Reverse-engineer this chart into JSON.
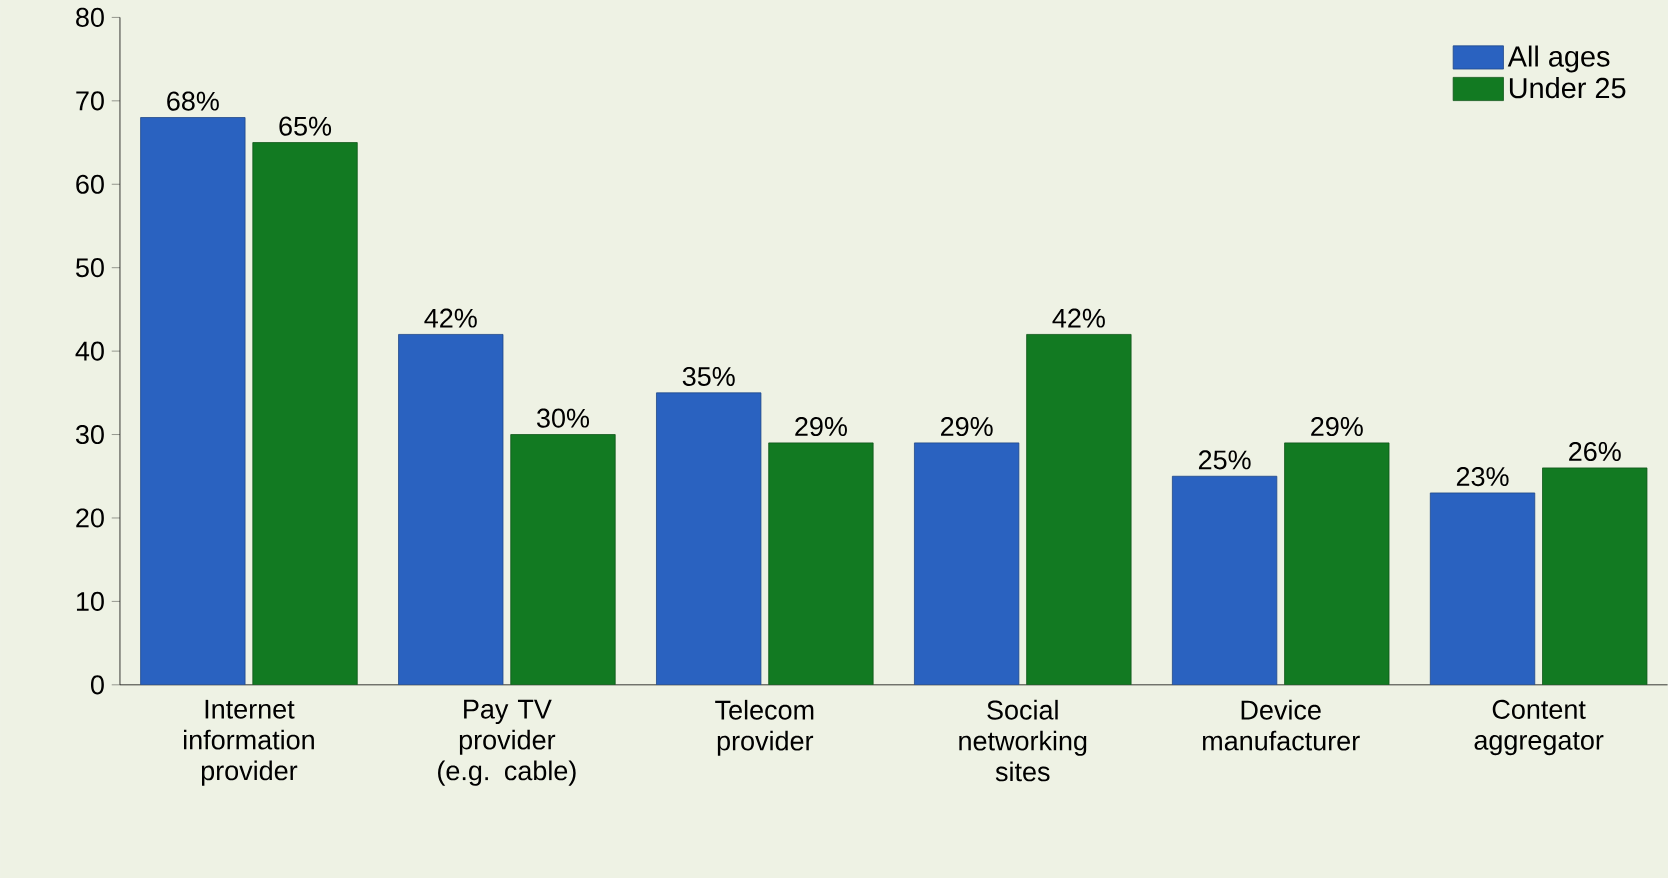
{
  "chart_data": {
    "type": "bar",
    "categories": [
      "Internet information provider",
      "Pay TV provider (e.g. cable)",
      "Telecom provider",
      "Social networking sites",
      "Device manufacturer",
      "Content aggregator"
    ],
    "series": [
      {
        "name": "All ages",
        "color": "#2a62c0",
        "values": [
          68,
          42,
          35,
          29,
          25,
          23
        ],
        "value_labels": [
          "68%",
          "42%",
          "35%",
          "29%",
          "25%",
          "23%"
        ]
      },
      {
        "name": "Under 25",
        "color": "#127a22",
        "values": [
          65,
          30,
          29,
          42,
          29,
          26
        ],
        "value_labels": [
          "65%",
          "30%",
          "29%",
          "42%",
          "29%",
          "26%"
        ]
      }
    ],
    "ylim": [
      0,
      80
    ],
    "yticks": [
      0,
      10,
      20,
      30,
      40,
      50,
      60,
      70,
      80
    ],
    "grid": false,
    "legend": "top right"
  }
}
